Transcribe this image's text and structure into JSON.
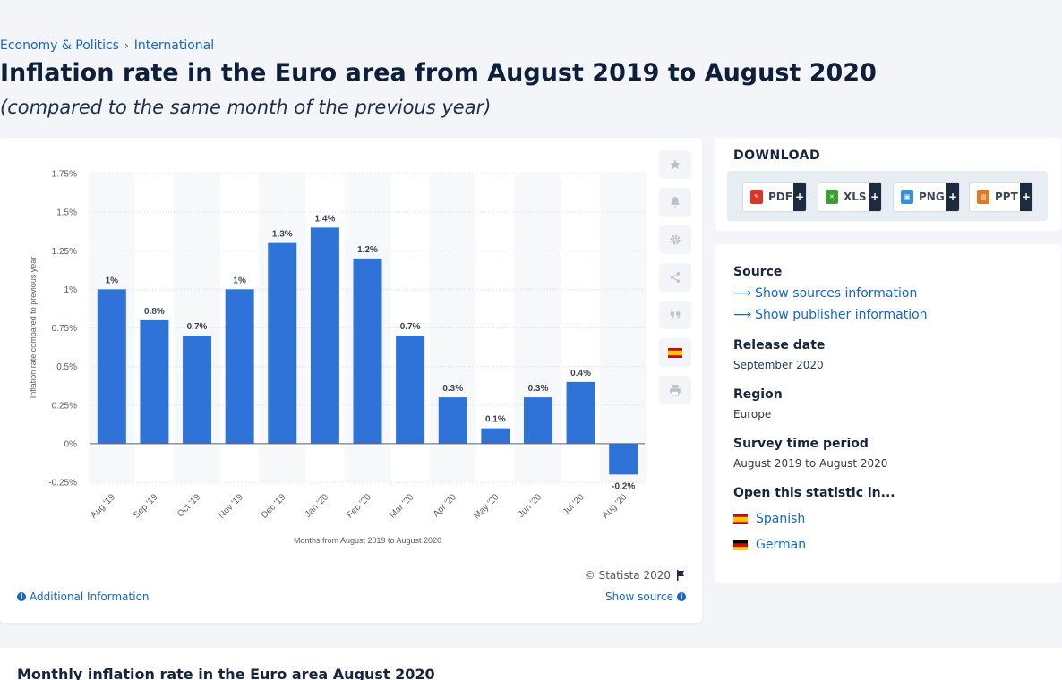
{
  "breadcrumb": {
    "item1": "Economy & Politics",
    "separator": "›",
    "item2": "International"
  },
  "page": {
    "title": "Inflation rate in the Euro area from August 2019 to August 2020",
    "subtitle": "(compared to the same month of the previous year)"
  },
  "chart_data": {
    "type": "bar",
    "categories": [
      "Aug '19",
      "Sep '19",
      "Oct '19",
      "Nov '19",
      "Dec '19",
      "Jan '20",
      "Feb '20",
      "Mar '20",
      "Apr '20",
      "May '20",
      "Jun '20",
      "Jul '20",
      "Aug '20"
    ],
    "values": [
      1.0,
      0.8,
      0.7,
      1.0,
      1.3,
      1.4,
      1.2,
      0.7,
      0.3,
      0.1,
      0.3,
      0.4,
      -0.2
    ],
    "data_labels": [
      "1%",
      "0.8%",
      "0.7%",
      "1%",
      "1.3%",
      "1.4%",
      "1.2%",
      "0.7%",
      "0.3%",
      "0.1%",
      "0.3%",
      "0.4%",
      "-0.2%"
    ],
    "yticks": [
      -0.25,
      0,
      0.25,
      0.5,
      0.75,
      1,
      1.25,
      1.5,
      1.75
    ],
    "ytick_labels": [
      "-0.25%",
      "0%",
      "0.25%",
      "0.5%",
      "0.75%",
      "1%",
      "1.25%",
      "1.5%",
      "1.75%"
    ],
    "ylim": [
      -0.25,
      1.75
    ],
    "xlabel": "Months from August 2019 to August 2020",
    "ylabel": "Inflation rate compared to previous year",
    "bar_color": "#2f72d8",
    "grid": true
  },
  "chart_footer": {
    "copyright": "© Statista 2020",
    "additional_info": "Additional Information",
    "show_source": "Show source"
  },
  "side_tools": [
    "star-icon",
    "bell-icon",
    "gear-icon",
    "share-icon",
    "quote-icon",
    "spain-flag-icon",
    "print-icon"
  ],
  "download": {
    "title": "DOWNLOAD",
    "buttons": [
      {
        "label": "PDF",
        "plus": "+",
        "color": "#d9352a"
      },
      {
        "label": "XLS",
        "plus": "+",
        "color": "#3f9c35"
      },
      {
        "label": "PNG",
        "plus": "+",
        "color": "#3b8fd6"
      },
      {
        "label": "PPT",
        "plus": "+",
        "color": "#e07a22"
      }
    ]
  },
  "info": {
    "source_heading": "Source",
    "show_sources": "Show sources information",
    "show_publisher": "Show publisher information",
    "release_heading": "Release date",
    "release_value": "September 2020",
    "region_heading": "Region",
    "region_value": "Europe",
    "survey_heading": "Survey time period",
    "survey_value": "August 2019 to August 2020",
    "open_heading": "Open this statistic in...",
    "lang_spanish": "Spanish",
    "lang_german": "German"
  },
  "bottom": {
    "title": "Monthly inflation rate in the Euro area August 2020"
  }
}
